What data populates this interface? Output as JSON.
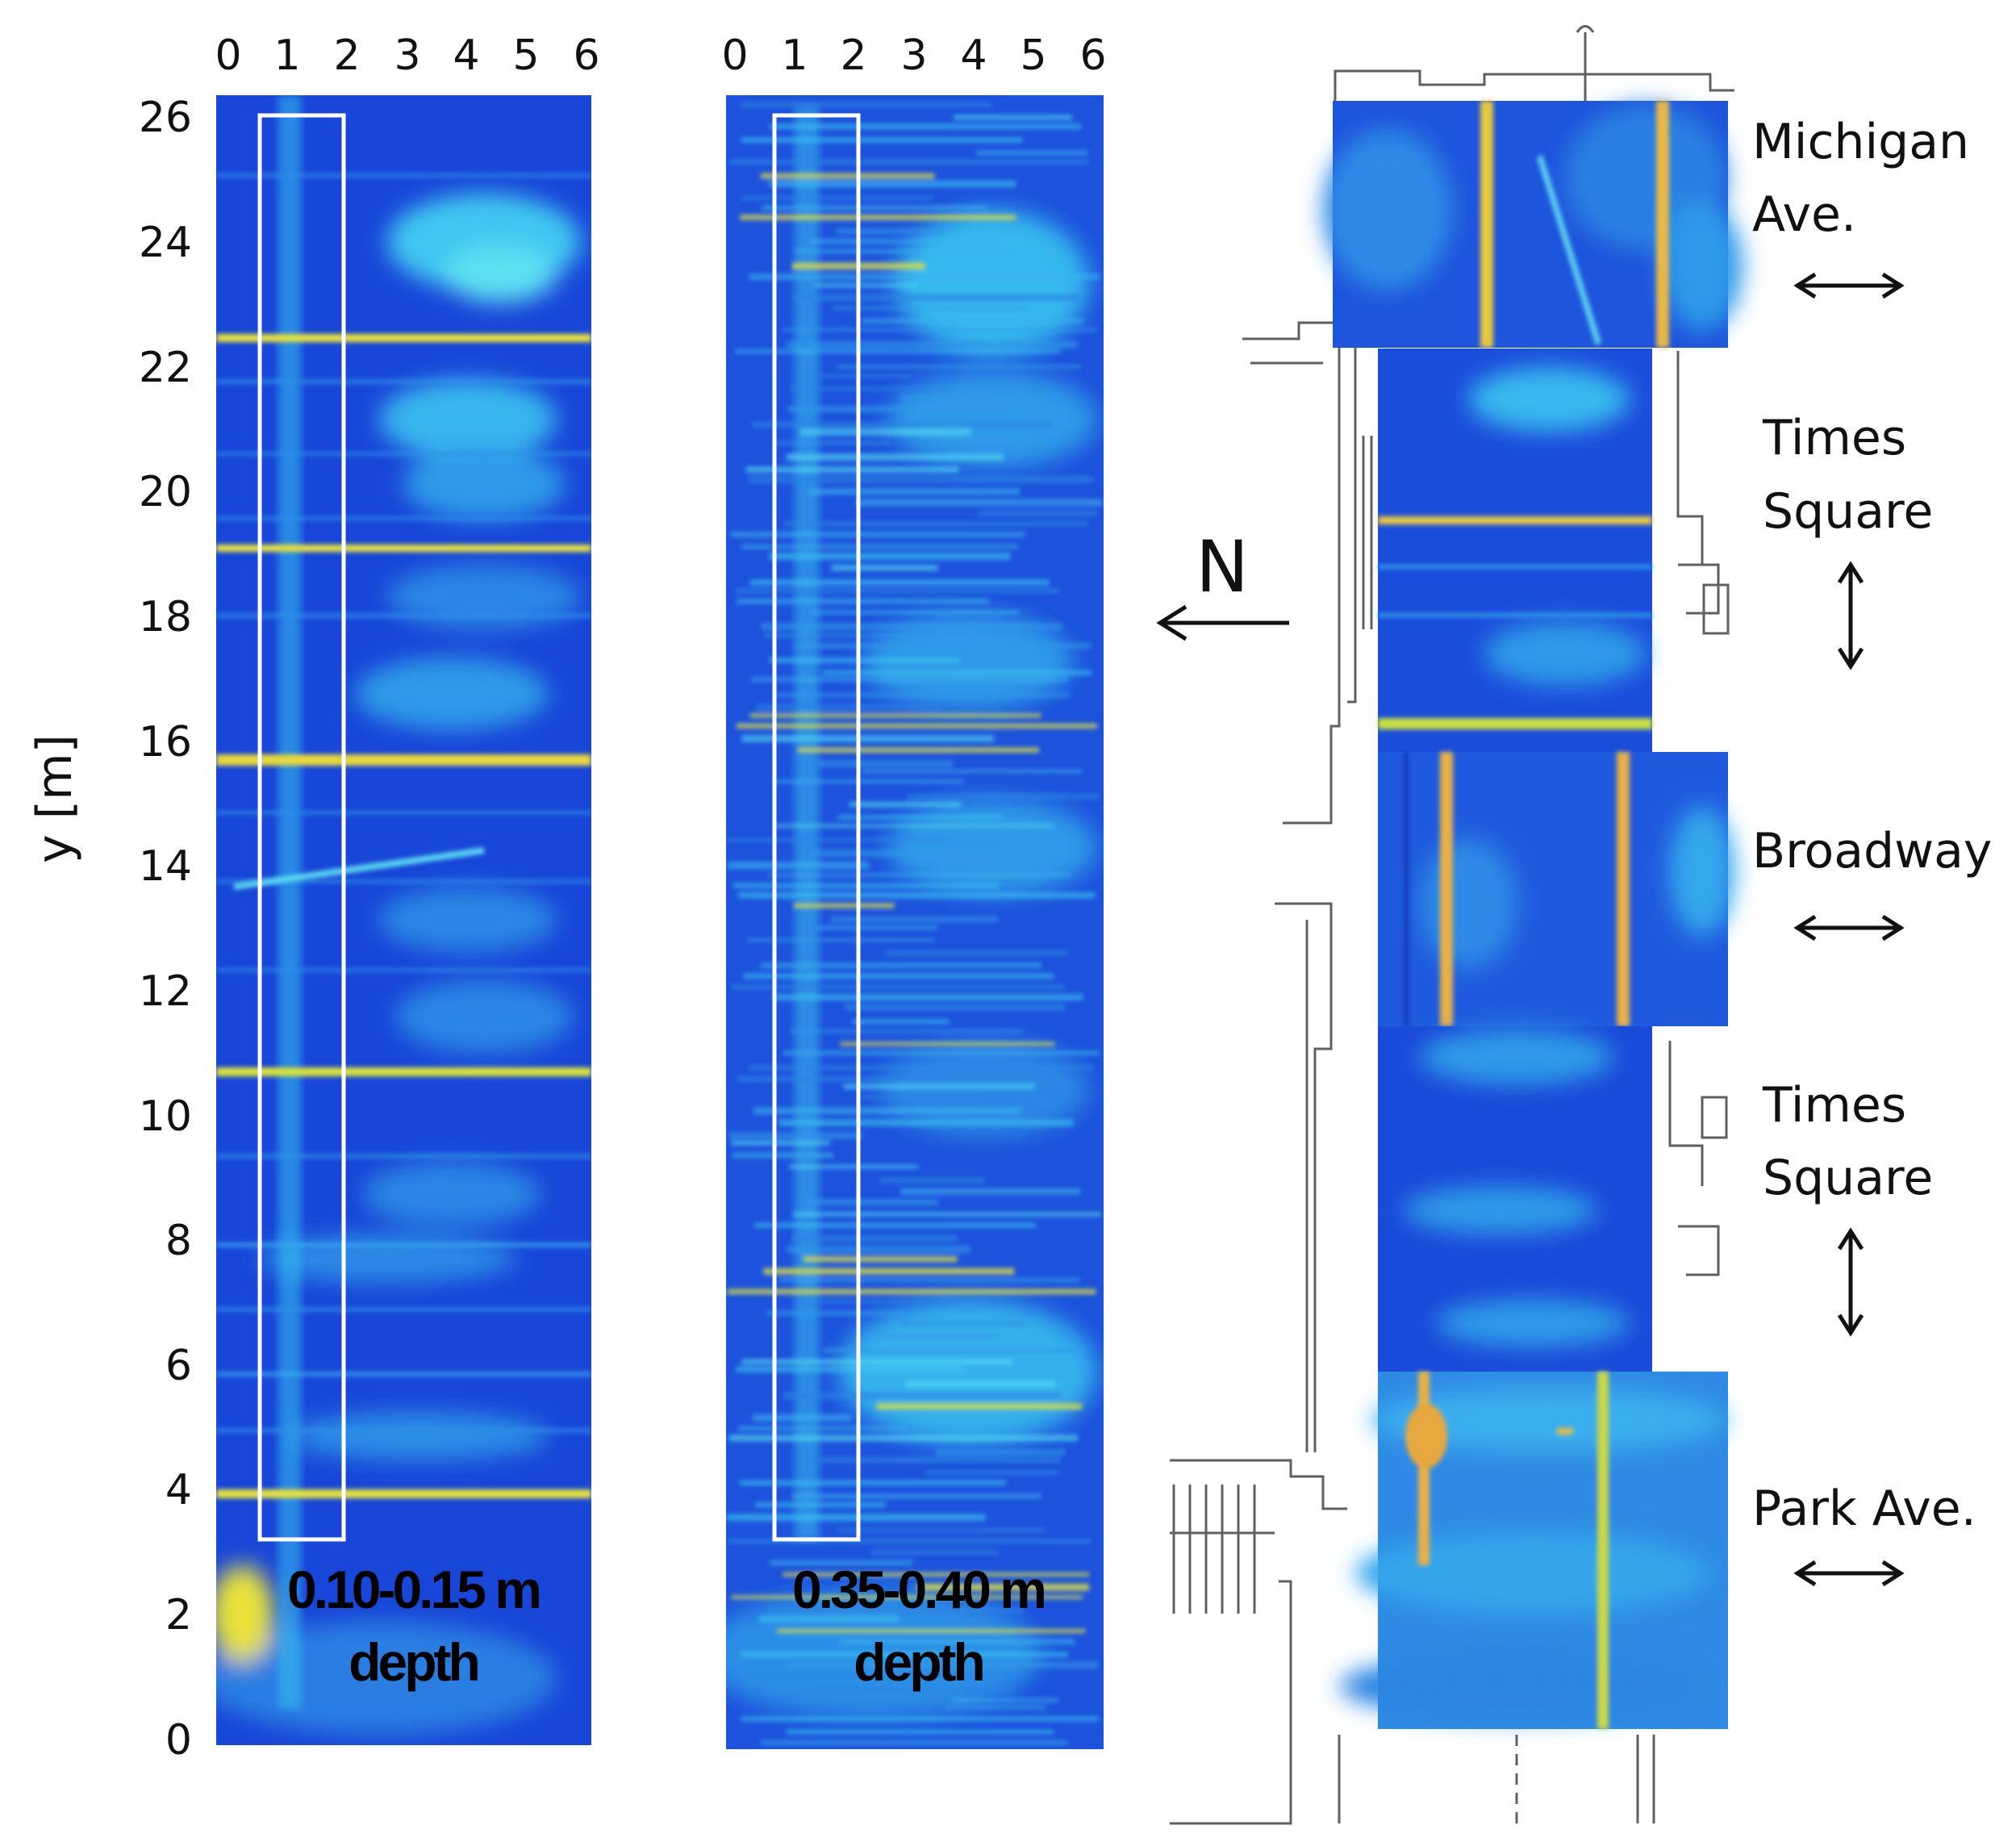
{
  "x_ticks": [
    "0",
    "1",
    "2",
    "3",
    "4",
    "5",
    "6"
  ],
  "y_ticks": [
    "26",
    "24",
    "22",
    "20",
    "18",
    "16",
    "14",
    "12",
    "10",
    "8",
    "6",
    "4",
    "2",
    "0"
  ],
  "y_axis_label": "y [m]",
  "panel_left": {
    "depth_line1": "0.10-0.15 m",
    "depth_line2": "depth"
  },
  "panel_middle": {
    "depth_line1": "0.35-0.40 m",
    "depth_line2": "depth"
  },
  "north_label": "N",
  "streets": [
    {
      "line1": "Michigan",
      "line2": "Ave.",
      "arrow": "horizontal"
    },
    {
      "line1": "Times",
      "line2": "Square",
      "arrow": "vertical"
    },
    {
      "line1": "Broadway",
      "line2": "",
      "arrow": "horizontal"
    },
    {
      "line1": "Times",
      "line2": "Square",
      "arrow": "vertical"
    },
    {
      "line1": "Park Ave.",
      "line2": "",
      "arrow": "horizontal"
    }
  ],
  "colors": {
    "field_dark": "#1744d6",
    "field_mid": "#2f7fea",
    "anomaly_cyan": "#3fe0f0",
    "anomaly_yellow": "#e8e23a",
    "anomaly_orange": "#f0a040",
    "frame": "#ffffff"
  }
}
